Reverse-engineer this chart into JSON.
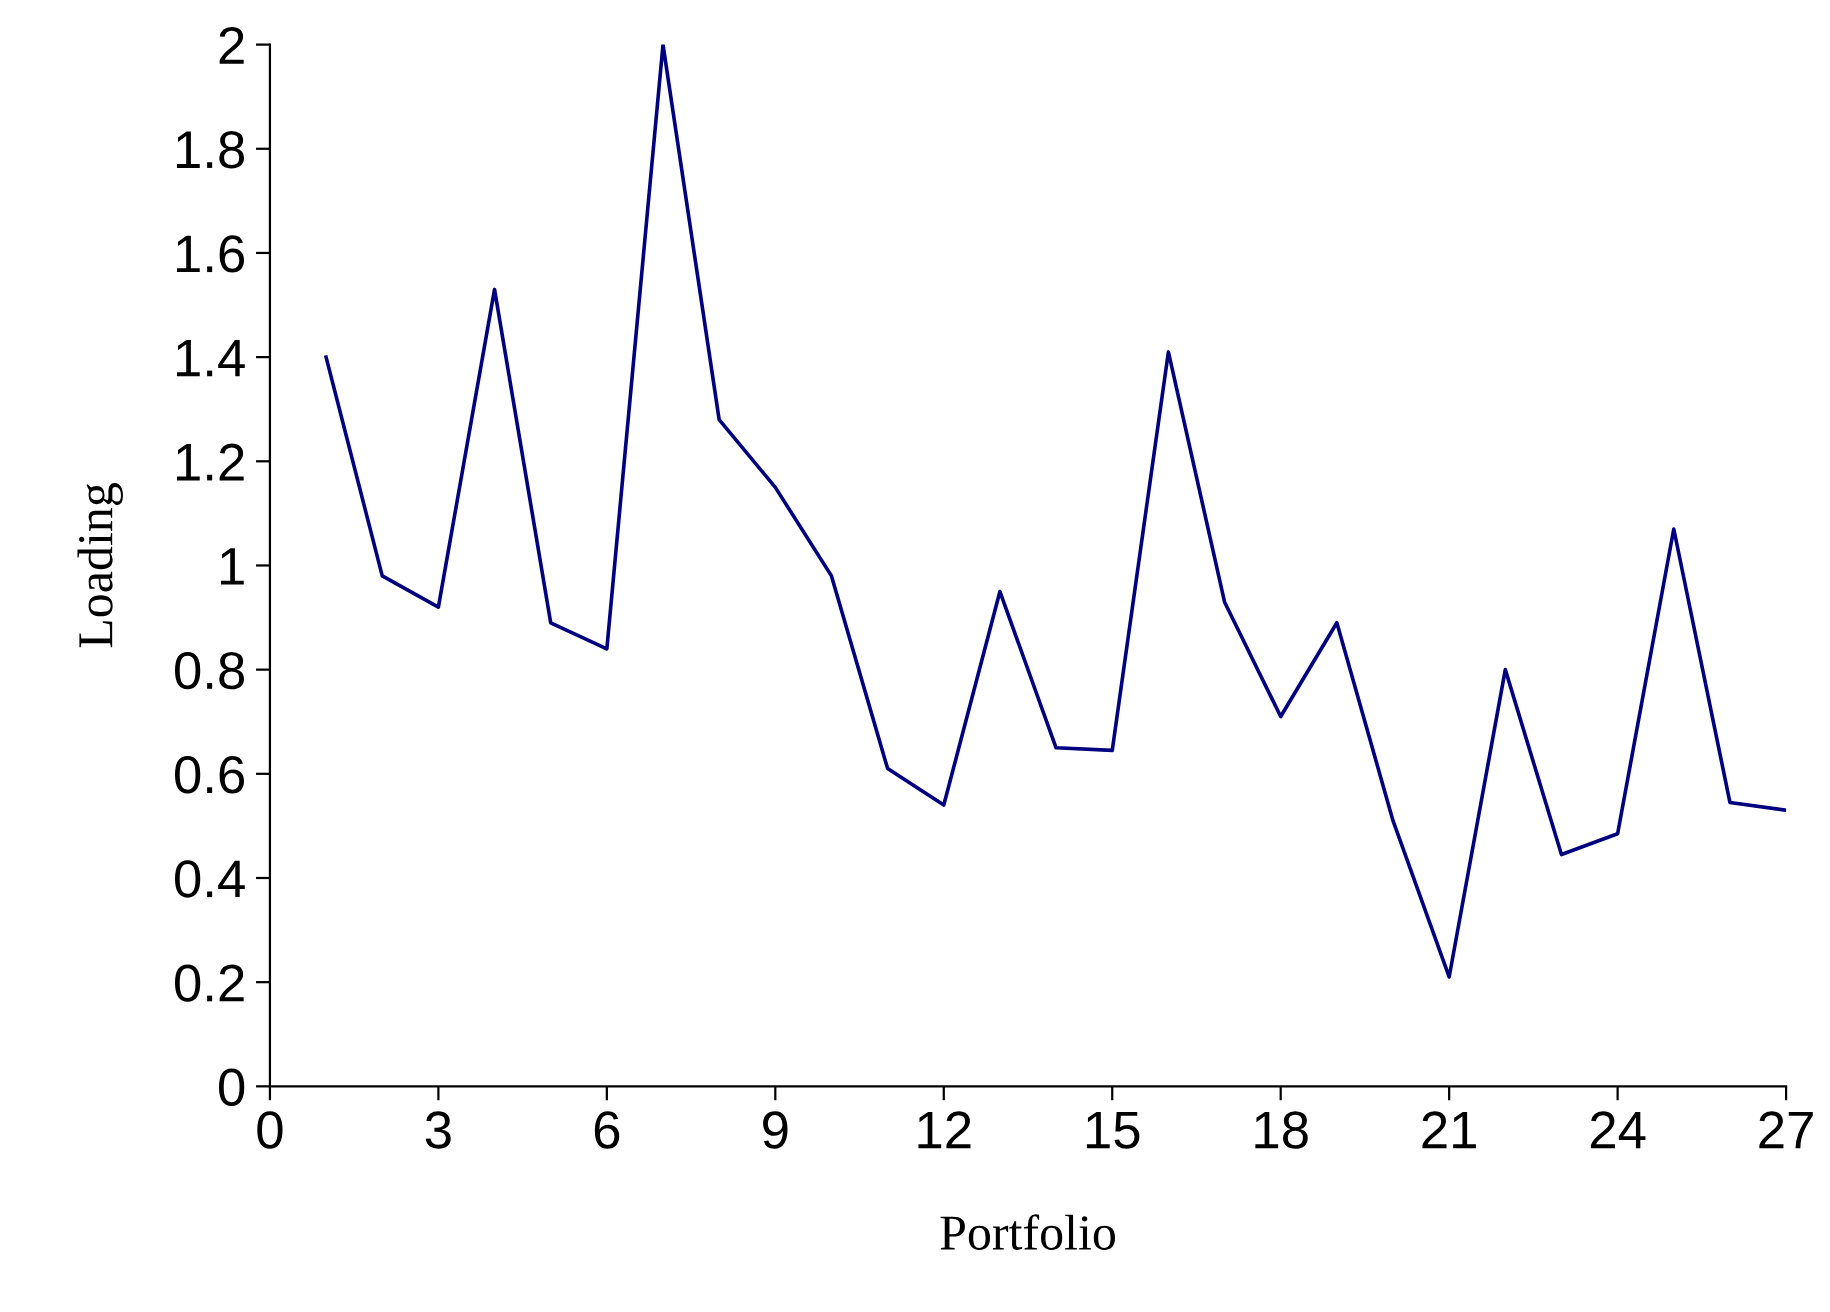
{
  "chart_data": {
    "type": "line",
    "xlabel": "Portfolio",
    "ylabel": "Loading",
    "x": [
      1,
      2,
      3,
      4,
      5,
      6,
      7,
      8,
      9,
      10,
      11,
      12,
      13,
      14,
      15,
      16,
      17,
      18,
      19,
      20,
      21,
      22,
      23,
      24,
      25,
      26,
      27
    ],
    "series": [
      {
        "color": "#000080",
        "values": [
          1.4,
          0.98,
          0.92,
          1.53,
          0.89,
          0.84,
          2.0,
          1.28,
          1.15,
          0.98,
          0.61,
          0.54,
          0.95,
          0.65,
          0.645,
          1.41,
          0.93,
          0.71,
          0.89,
          0.51,
          0.21,
          0.8,
          0.445,
          0.485,
          1.07,
          0.545,
          0.53
        ]
      }
    ],
    "xlim": [
      0,
      27
    ],
    "xticks": [
      0,
      3,
      6,
      9,
      12,
      15,
      18,
      21,
      24,
      27
    ],
    "ylim": [
      0,
      2
    ],
    "yticks": [
      0,
      {
        "value": 0.2,
        "label": "0.2"
      },
      {
        "value": 0.4,
        "label": "0.4"
      },
      {
        "value": 0.6,
        "label": "0.6"
      },
      {
        "value": 0.8,
        "label": "0.8"
      },
      1,
      {
        "value": 1.2,
        "label": "1.2"
      },
      {
        "value": 1.4,
        "label": "1.4"
      },
      {
        "value": 1.6,
        "label": "1.6"
      },
      {
        "value": 1.8,
        "label": "1.8"
      },
      2
    ],
    "grid": false,
    "legend": false,
    "marker": "none",
    "line_style": "solid"
  }
}
